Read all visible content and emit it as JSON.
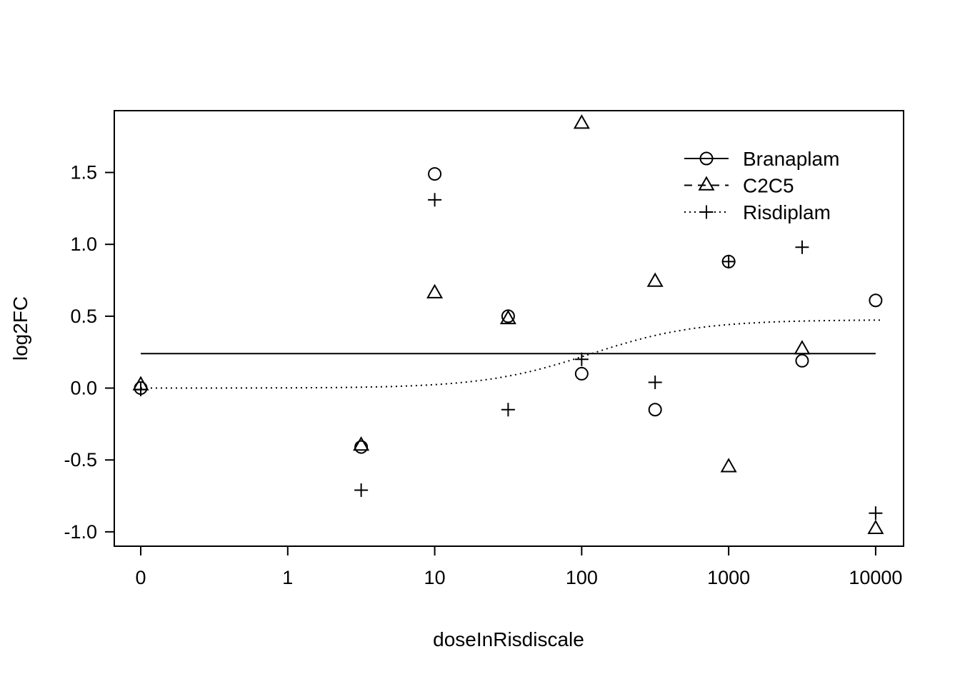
{
  "chart_data": {
    "type": "scatter",
    "title": "",
    "xlabel": "doseInRisdiscale",
    "ylabel": "log2FC",
    "x_scale": "log10, with 0 plotted one decade left of 1",
    "x_ticks": [
      "0",
      "1",
      "10",
      "100",
      "1000",
      "10000"
    ],
    "x_ticks_log_pos": [
      -1,
      0,
      1,
      2,
      3,
      4
    ],
    "y_ticks": [
      "-1.0",
      "-0.5",
      "0.0",
      "0.5",
      "1.0",
      "1.5"
    ],
    "xlim_log": [
      -1.18,
      4.19
    ],
    "ylim": [
      -1.1,
      1.93
    ],
    "grid": false,
    "legend_position": "top-right",
    "colors": {
      "foreground": "#000000",
      "background": "#ffffff"
    },
    "series": [
      {
        "name": "Branaplam",
        "marker": "circle",
        "line_style": "solid",
        "points": [
          {
            "x": 0,
            "y": 0.0
          },
          {
            "x": 3.16,
            "y": -0.41
          },
          {
            "x": 10,
            "y": 1.49
          },
          {
            "x": 31.6,
            "y": 0.5
          },
          {
            "x": 100,
            "y": 0.1
          },
          {
            "x": 316,
            "y": -0.15
          },
          {
            "x": 1000,
            "y": 0.88
          },
          {
            "x": 3160,
            "y": 0.19
          },
          {
            "x": 10000,
            "y": 0.61
          }
        ]
      },
      {
        "name": "C2C5",
        "marker": "triangle",
        "line_style": "dashed",
        "points": [
          {
            "x": 0,
            "y": 0.02
          },
          {
            "x": 3.16,
            "y": -0.4
          },
          {
            "x": 10,
            "y": 0.66
          },
          {
            "x": 31.6,
            "y": 0.48
          },
          {
            "x": 100,
            "y": 1.84
          },
          {
            "x": 316,
            "y": 0.74
          },
          {
            "x": 1000,
            "y": -0.55
          },
          {
            "x": 3160,
            "y": 0.27
          },
          {
            "x": 10000,
            "y": -0.98
          }
        ]
      },
      {
        "name": "Risdiplam",
        "marker": "plus",
        "line_style": "dotted",
        "points": [
          {
            "x": 0,
            "y": -0.01
          },
          {
            "x": 3.16,
            "y": -0.71
          },
          {
            "x": 10,
            "y": 1.31
          },
          {
            "x": 31.6,
            "y": -0.15
          },
          {
            "x": 100,
            "y": 0.2
          },
          {
            "x": 316,
            "y": 0.04
          },
          {
            "x": 1000,
            "y": 0.88
          },
          {
            "x": 3160,
            "y": 0.98
          },
          {
            "x": 10000,
            "y": -0.87
          }
        ]
      }
    ],
    "fit_curves": [
      {
        "series": "Branaplam",
        "style": "solid",
        "shape": "constant",
        "y": 0.24
      },
      {
        "series": "Risdiplam",
        "style": "dotted",
        "shape": "sigmoid",
        "bottom": 0.0,
        "top": 0.475,
        "ec50": 115,
        "hill": 1.2
      }
    ]
  }
}
